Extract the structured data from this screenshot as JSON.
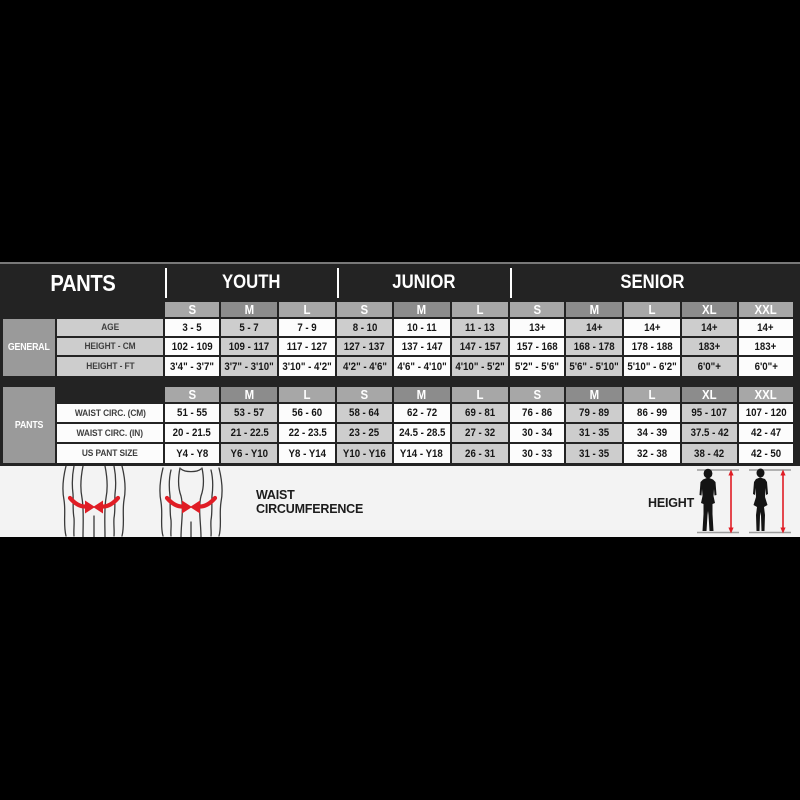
{
  "chart_data": {
    "type": "table",
    "title": "PANTS",
    "column_groups": [
      {
        "label": "YOUTH",
        "span": 3
      },
      {
        "label": "JUNIOR",
        "span": 3
      },
      {
        "label": "SENIOR",
        "span": 5
      }
    ],
    "size_headers": [
      "S",
      "M",
      "L",
      "S",
      "M",
      "L",
      "S",
      "M",
      "L",
      "XL",
      "XXL"
    ],
    "sections": [
      {
        "label": "GENERAL",
        "rows": [
          {
            "label": "AGE",
            "values": [
              "3 - 5",
              "5 - 7",
              "7 - 9",
              "8 - 10",
              "10 - 11",
              "11 - 13",
              "13+",
              "14+",
              "14+",
              "14+",
              "14+"
            ]
          },
          {
            "label": "HEIGHT - CM",
            "values": [
              "102 - 109",
              "109 - 117",
              "117 - 127",
              "127 - 137",
              "137 - 147",
              "147 - 157",
              "157 - 168",
              "168 - 178",
              "178 - 188",
              "183+",
              "183+"
            ]
          },
          {
            "label": "HEIGHT - FT",
            "values": [
              "3'4\" - 3'7\"",
              "3'7\" - 3'10\"",
              "3'10\" - 4'2\"",
              "4'2\" - 4'6\"",
              "4'6\" - 4'10\"",
              "4'10\" - 5'2\"",
              "5'2\" - 5'6\"",
              "5'6\" - 5'10\"",
              "5'10\" - 6'2\"",
              "6'0\"+",
              "6'0\"+"
            ]
          }
        ]
      },
      {
        "label": "PANTS",
        "rows": [
          {
            "label": "WAIST CIRC. (CM)",
            "values": [
              "51 - 55",
              "53 - 57",
              "56 - 60",
              "58 - 64",
              "62 - 72",
              "69 - 81",
              "76 - 86",
              "79 - 89",
              "86 - 99",
              "95 - 107",
              "107 - 120"
            ]
          },
          {
            "label": "WAIST CIRC. (IN)",
            "values": [
              "20 - 21.5",
              "21 - 22.5",
              "22 - 23.5",
              "23 - 25",
              "24.5 - 28.5",
              "27 - 32",
              "30 - 34",
              "31 - 35",
              "34 - 39",
              "37.5 - 42",
              "42 - 47"
            ]
          },
          {
            "label": "US PANT SIZE",
            "values": [
              "Y4 - Y8",
              "Y6 - Y10",
              "Y8 - Y14",
              "Y10 - Y16",
              "Y14 - Y18",
              "26 - 31",
              "30 - 33",
              "31 - 35",
              "32 - 38",
              "38 - 42",
              "42 - 50"
            ]
          }
        ]
      }
    ],
    "legend": {
      "waist_label": "WAIST CIRCUMFERENCE",
      "height_label": "HEIGHT"
    },
    "layout_hints": {
      "grid": "off",
      "column_shading": "alternating white / gray per column",
      "legend_position": "bottom band with measurement figures"
    }
  },
  "colors": {
    "page_bg": "#000000",
    "table_bg": "#232323",
    "accent_red": "#e01d25",
    "cell_white": "#fcfcfc",
    "cell_gray": "#cdcdcd",
    "header_gray_light": "#a7a7a7",
    "header_gray_dark": "#8c8c8c",
    "section_label_gray": "#9a9a9a",
    "legend_band_bg": "#f3f3f3",
    "title_text": "#ffffff"
  }
}
